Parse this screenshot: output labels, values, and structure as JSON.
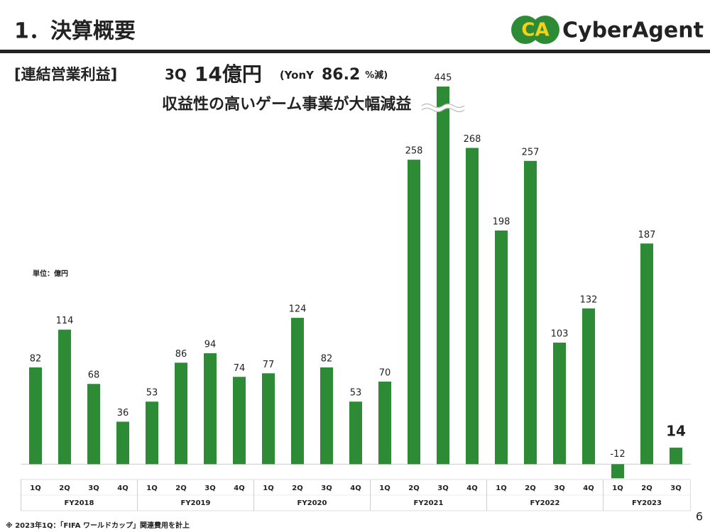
{
  "title": "1．決算概要",
  "logo": {
    "mark": "CA",
    "name": "CyberAgent"
  },
  "section": "[連結営業利益]",
  "headline": {
    "quarter": "3Q",
    "amount": "14億円",
    "yoy_prefix": "(YonY",
    "yoy_value": "86.2",
    "yoy_suffix": "%減)"
  },
  "subheadline": "収益性の高いゲーム事業が大幅減益",
  "unit": "単位：億円",
  "footnote": "※ 2023年1Q：「FIFA ワールドカップ」関連費用を計上",
  "page_number": "6",
  "chart_data": {
    "type": "bar",
    "color": "#2e8b35",
    "ylim": [
      -13,
      320
    ],
    "axis_break": true,
    "groups": [
      {
        "label": "FY2018",
        "categories": [
          "1Q",
          "2Q",
          "3Q",
          "4Q"
        ],
        "values": [
          82,
          114,
          68,
          36
        ]
      },
      {
        "label": "FY2019",
        "categories": [
          "1Q",
          "2Q",
          "3Q",
          "4Q"
        ],
        "values": [
          53,
          86,
          94,
          74
        ]
      },
      {
        "label": "FY2020",
        "categories": [
          "1Q",
          "2Q",
          "3Q",
          "4Q"
        ],
        "values": [
          77,
          124,
          82,
          53
        ]
      },
      {
        "label": "FY2021",
        "categories": [
          "1Q",
          "2Q",
          "3Q",
          "4Q"
        ],
        "values": [
          70,
          258,
          445,
          268
        ]
      },
      {
        "label": "FY2022",
        "categories": [
          "1Q",
          "2Q",
          "3Q",
          "4Q"
        ],
        "values": [
          198,
          257,
          103,
          132
        ]
      },
      {
        "label": "FY2023",
        "categories": [
          "1Q",
          "2Q",
          "3Q"
        ],
        "values": [
          -12,
          187,
          14
        ]
      }
    ]
  }
}
